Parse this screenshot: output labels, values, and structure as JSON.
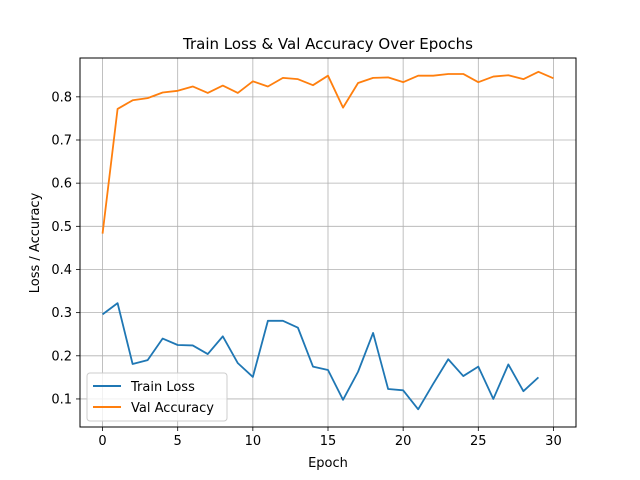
{
  "chart_data": {
    "type": "line",
    "title": "Train Loss & Val Accuracy Over Epochs",
    "xlabel": "Epoch",
    "ylabel": "Loss / Accuracy",
    "xlim": [
      -1.5,
      31.5
    ],
    "ylim": [
      0.035,
      0.89
    ],
    "xticks": [
      0,
      5,
      10,
      15,
      20,
      25,
      30
    ],
    "yticks": [
      0.1,
      0.2,
      0.3,
      0.4,
      0.5,
      0.6,
      0.7,
      0.8
    ],
    "ytick_labels": [
      "0.1",
      "0.2",
      "0.3",
      "0.4",
      "0.5",
      "0.6",
      "0.7",
      "0.8"
    ],
    "grid": true,
    "legend_position": "lower-left",
    "series": [
      {
        "name": "Train Loss",
        "color": "#1f77b4",
        "x": [
          0,
          1,
          2,
          3,
          4,
          5,
          6,
          7,
          8,
          9,
          10,
          11,
          12,
          13,
          14,
          15,
          16,
          17,
          18,
          19,
          20,
          21,
          22,
          23,
          24,
          25,
          26,
          27,
          28,
          29
        ],
        "values": [
          0.296,
          0.322,
          0.181,
          0.19,
          0.24,
          0.225,
          0.224,
          0.204,
          0.245,
          0.183,
          0.151,
          0.281,
          0.281,
          0.265,
          0.175,
          0.167,
          0.098,
          0.163,
          0.253,
          0.123,
          0.12,
          0.076,
          0.135,
          0.192,
          0.153,
          0.175,
          0.1,
          0.18,
          0.118,
          0.15
        ]
      },
      {
        "name": "Val Accuracy",
        "color": "#ff7f0e",
        "x": [
          0,
          1,
          2,
          3,
          4,
          5,
          6,
          7,
          8,
          9,
          10,
          11,
          12,
          13,
          14,
          15,
          16,
          17,
          18,
          19,
          20,
          21,
          22,
          23,
          24,
          25,
          26,
          27,
          28,
          29,
          30
        ],
        "values": [
          0.483,
          0.772,
          0.792,
          0.797,
          0.81,
          0.814,
          0.824,
          0.809,
          0.826,
          0.809,
          0.836,
          0.824,
          0.844,
          0.841,
          0.827,
          0.849,
          0.775,
          0.832,
          0.844,
          0.845,
          0.834,
          0.849,
          0.849,
          0.853,
          0.853,
          0.834,
          0.847,
          0.85,
          0.841,
          0.858,
          0.843
        ]
      }
    ]
  }
}
